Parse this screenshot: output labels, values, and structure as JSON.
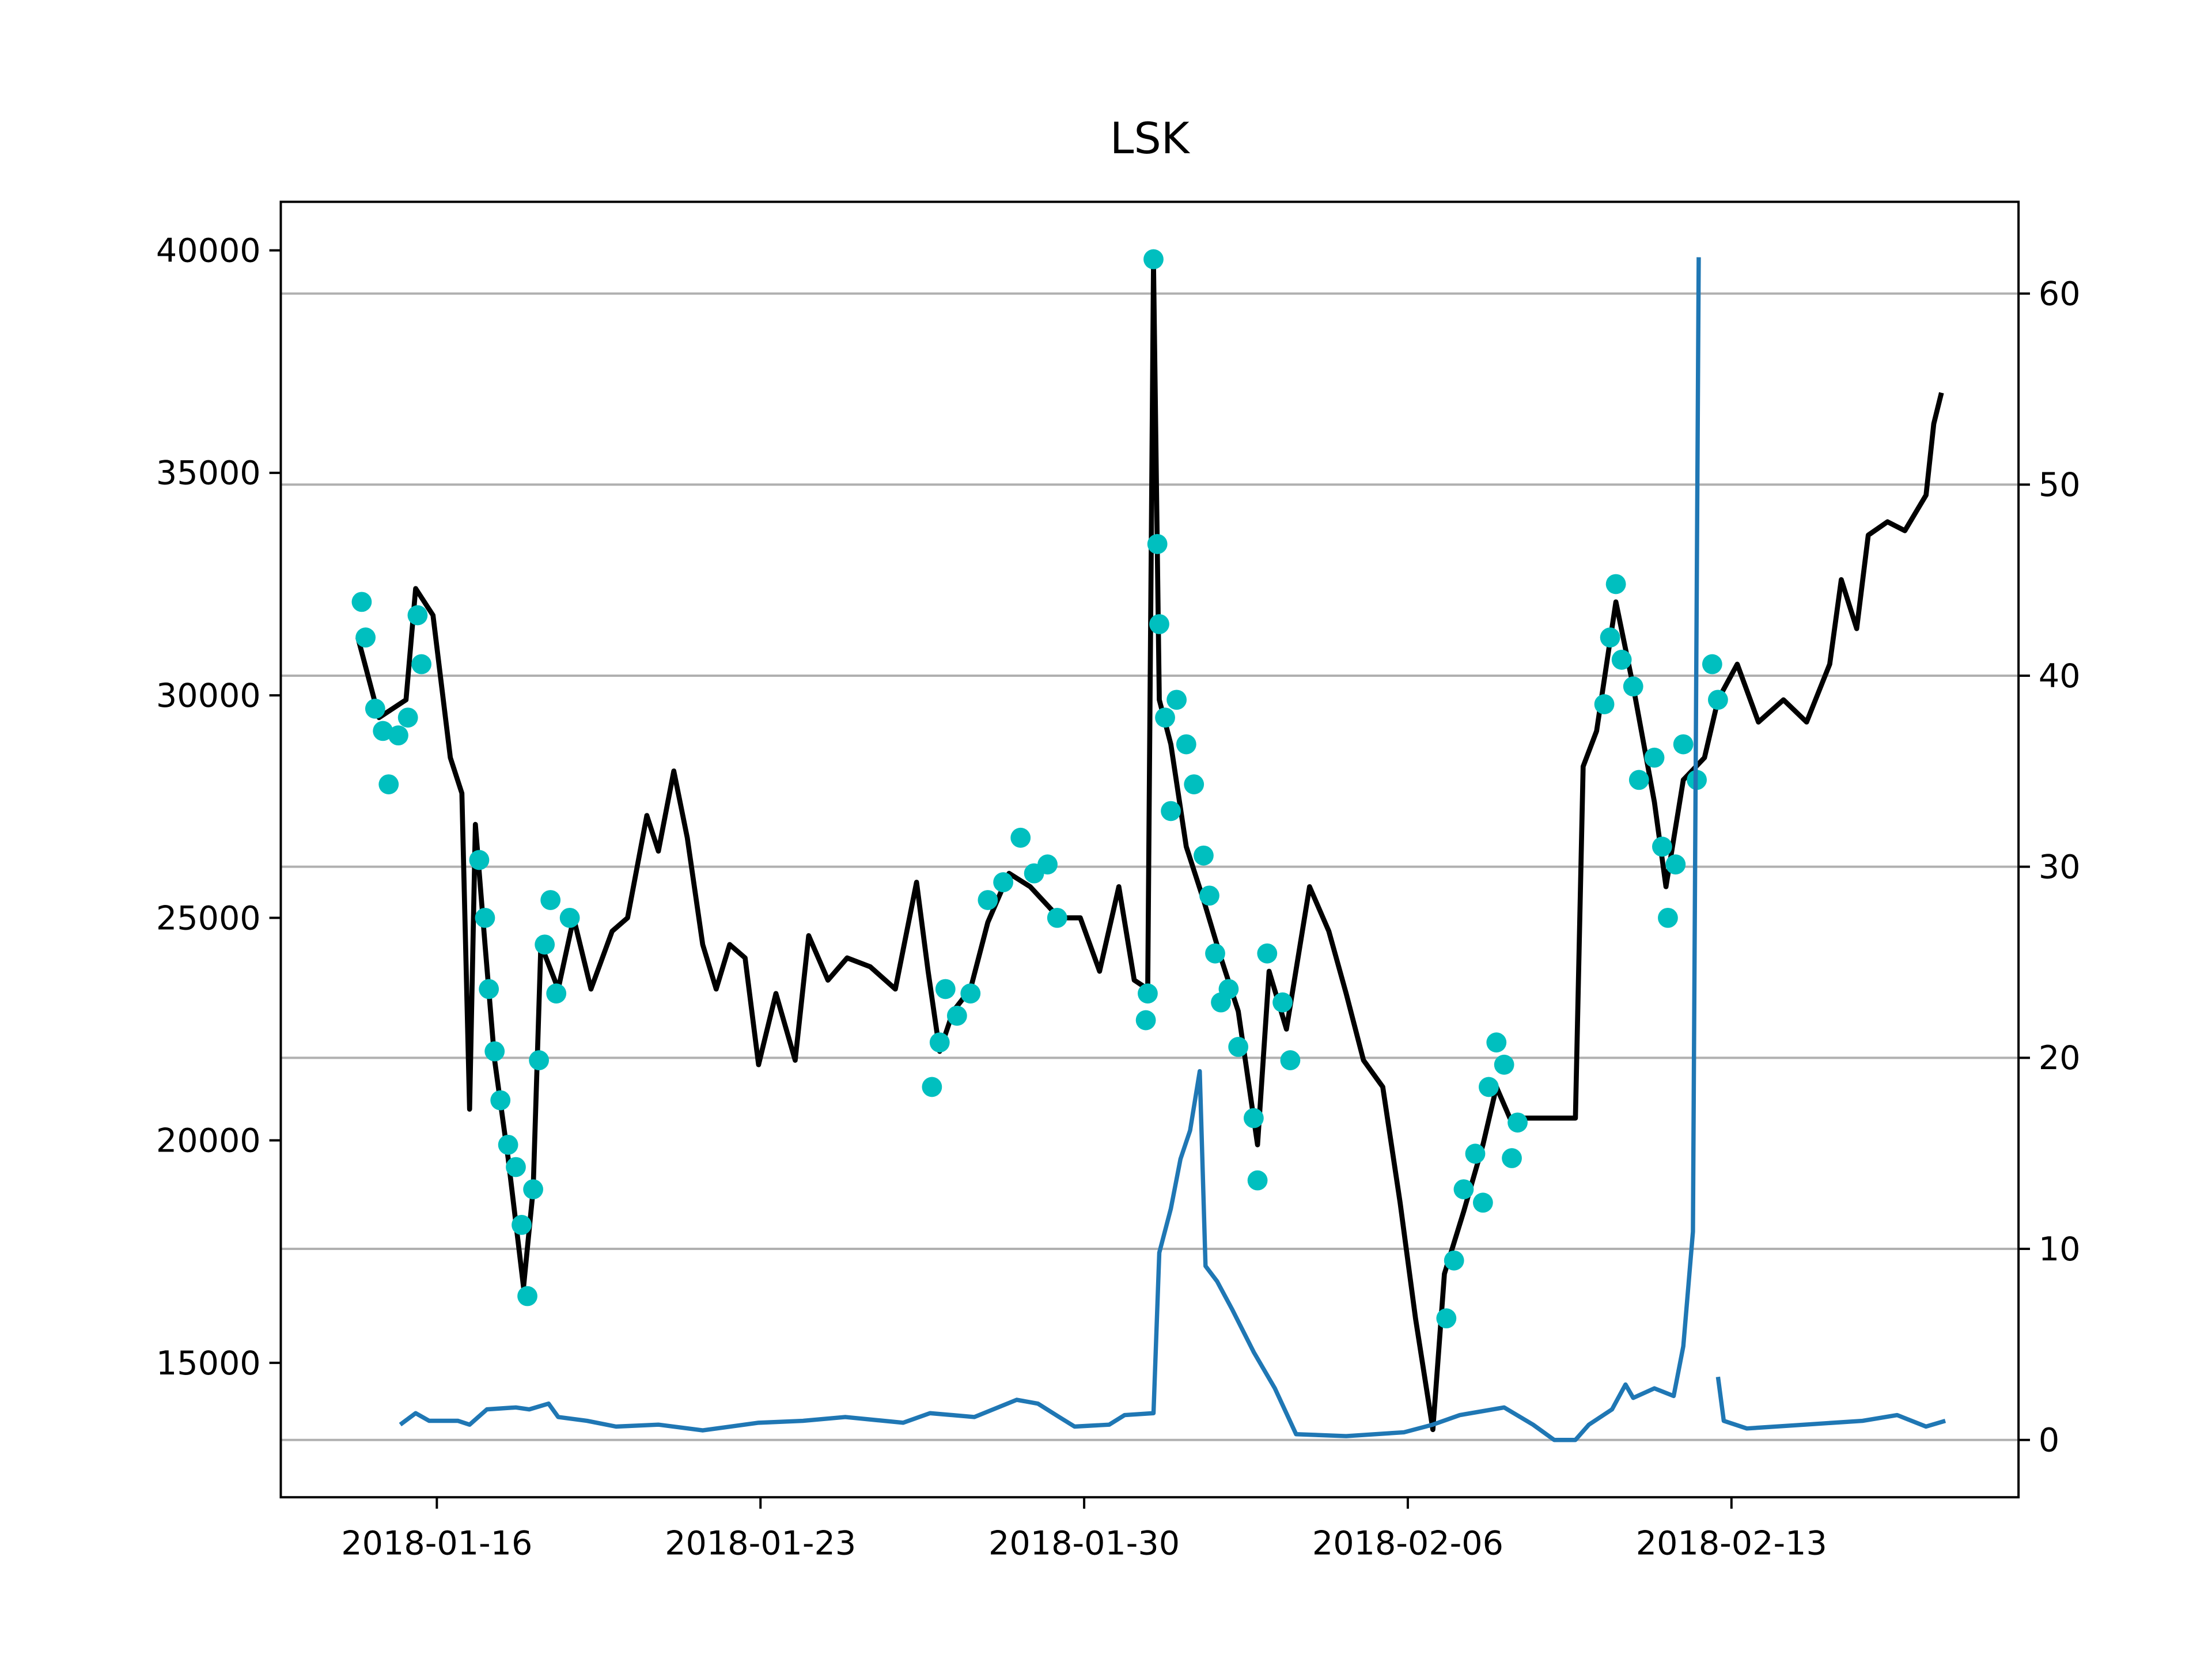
{
  "chart_data": {
    "type": "line",
    "title": "LSK",
    "xlim": [
      "2018-01-12 15:00",
      "2018-02-19 05:00"
    ],
    "xticks": [
      "2018-01-16",
      "2018-01-23",
      "2018-01-30",
      "2018-02-06",
      "2018-02-13"
    ],
    "ylim": [
      11980,
      41090
    ],
    "yticks": [
      15000,
      20000,
      25000,
      30000,
      35000,
      40000
    ],
    "y2lim": [
      -3.0,
      64.8
    ],
    "y2ticks": [
      0,
      10,
      20,
      30,
      40,
      50,
      60
    ],
    "grid": "y2",
    "series": [
      {
        "type": "line",
        "color": "#000000",
        "x": [
          "2018-01-14 07:00",
          "2018-01-14 18:00",
          "2018-01-15 08:00",
          "2018-01-15 13:00",
          "2018-01-15 22:00",
          "2018-01-16 07:00",
          "2018-01-16 13:00",
          "2018-01-16 17:00",
          "2018-01-16 20:00",
          "2018-01-17 01:00",
          "2018-01-17 06:00",
          "2018-01-17 13:00",
          "2018-01-17 21:00",
          "2018-01-18 02:00",
          "2018-01-18 06:00",
          "2018-01-18 15:00",
          "2018-01-18 23:00",
          "2018-01-19 08:00",
          "2018-01-19 19:00",
          "2018-01-20 03:00",
          "2018-01-20 13:00",
          "2018-01-20 19:00",
          "2018-01-21 03:00",
          "2018-01-21 10:00",
          "2018-01-21 18:00",
          "2018-01-22 01:00",
          "2018-01-22 08:00",
          "2018-01-22 16:00",
          "2018-01-22 23:00",
          "2018-01-23 08:00",
          "2018-01-23 18:00",
          "2018-01-24 01:00",
          "2018-01-24 11:00",
          "2018-01-24 21:00",
          "2018-01-25 09:00",
          "2018-01-25 22:00",
          "2018-01-26 09:00",
          "2018-01-26 15:00",
          "2018-01-26 21:00",
          "2018-01-27 04:00",
          "2018-01-27 13:00",
          "2018-01-27 22:00",
          "2018-01-28 09:00",
          "2018-01-28 20:00",
          "2018-01-29 11:00",
          "2018-01-29 22:00",
          "2018-01-30 08:00",
          "2018-01-30 18:00",
          "2018-01-31 02:00",
          "2018-01-31 09:00",
          "2018-01-31 12:00",
          "2018-01-31 15:00",
          "2018-01-31 21:00",
          "2018-02-01 05:00",
          "2018-02-01 14:00",
          "2018-02-01 23:00",
          "2018-02-02 08:00",
          "2018-02-02 18:00",
          "2018-02-03 00:00",
          "2018-02-03 09:00",
          "2018-02-03 21:00",
          "2018-02-04 07:00",
          "2018-02-04 16:00",
          "2018-02-05 01:00",
          "2018-02-05 11:00",
          "2018-02-05 20:00",
          "2018-02-06 04:00",
          "2018-02-06 13:00",
          "2018-02-06 19:00",
          "2018-02-07 05:00",
          "2018-02-07 15:00",
          "2018-02-07 22:00",
          "2018-02-08 05:00",
          "2018-02-09 15:00",
          "2018-02-09 19:00",
          "2018-02-10 02:00",
          "2018-02-10 12:00",
          "2018-02-10 21:00",
          "2018-02-11 08:00",
          "2018-02-11 14:00",
          "2018-02-11 23:00",
          "2018-02-12 10:00",
          "2018-02-12 17:00",
          "2018-02-13 03:00",
          "2018-02-13 14:00",
          "2018-02-14 03:00",
          "2018-02-14 15:00",
          "2018-02-15 03:00",
          "2018-02-15 09:00",
          "2018-02-15 17:00",
          "2018-02-15 23:00",
          "2018-02-16 09:00",
          "2018-02-16 18:00",
          "2018-02-17 05:00",
          "2018-02-17 09:00",
          "2018-02-17 13:00"
        ],
        "values": [
          31300,
          29500,
          29900,
          32400,
          31800,
          28600,
          27800,
          20700,
          27100,
          24400,
          21800,
          19600,
          16700,
          18900,
          24400,
          23400,
          25000,
          23400,
          24700,
          25000,
          27300,
          26500,
          28300,
          26800,
          24400,
          23400,
          24400,
          24100,
          21700,
          23300,
          21800,
          24600,
          23600,
          24100,
          23900,
          23400,
          25800,
          23800,
          22000,
          22900,
          23400,
          24900,
          26000,
          25700,
          25000,
          25000,
          23800,
          25700,
          23600,
          23400,
          39700,
          29900,
          28900,
          26600,
          25400,
          24100,
          22900,
          19900,
          23800,
          22500,
          25700,
          24700,
          23300,
          21800,
          21200,
          18600,
          16000,
          13500,
          17000,
          18400,
          19900,
          21200,
          20500,
          20500,
          28400,
          29200,
          32100,
          30200,
          27600,
          25700,
          28100,
          28600,
          29900,
          30700,
          29400,
          29900,
          29400,
          30700,
          32600,
          31500,
          33600,
          33900,
          33700,
          34500,
          36100,
          36800
        ]
      },
      {
        "type": "scatter",
        "color": "#00bfbf",
        "x": [
          "2018-01-14 09:00",
          "2018-01-14 11:00",
          "2018-01-14 16:00",
          "2018-01-14 20:00",
          "2018-01-14 23:00",
          "2018-01-15 04:00",
          "2018-01-15 09:00",
          "2018-01-15 14:00",
          "2018-01-15 16:00",
          "2018-01-16 22:00",
          "2018-01-17 01:00",
          "2018-01-17 03:00",
          "2018-01-17 06:00",
          "2018-01-17 09:00",
          "2018-01-17 13:00",
          "2018-01-17 17:00",
          "2018-01-17 20:00",
          "2018-01-17 23:00",
          "2018-01-18 02:00",
          "2018-01-18 05:00",
          "2018-01-18 08:00",
          "2018-01-18 11:00",
          "2018-01-18 14:00",
          "2018-01-18 21:00",
          "2018-01-26 17:00",
          "2018-01-26 21:00",
          "2018-01-27 00:00",
          "2018-01-27 06:00",
          "2018-01-27 13:00",
          "2018-01-27 22:00",
          "2018-01-28 06:00",
          "2018-01-28 15:00",
          "2018-01-28 22:00",
          "2018-01-29 05:00",
          "2018-01-29 10:00",
          "2018-01-31 08:00",
          "2018-01-31 09:00",
          "2018-01-31 12:00",
          "2018-01-31 14:00",
          "2018-01-31 15:00",
          "2018-01-31 18:00",
          "2018-01-31 21:00",
          "2018-02-01 00:00",
          "2018-02-01 05:00",
          "2018-02-01 09:00",
          "2018-02-01 14:00",
          "2018-02-01 17:00",
          "2018-02-01 20:00",
          "2018-02-01 23:00",
          "2018-02-02 03:00",
          "2018-02-02 08:00",
          "2018-02-02 16:00",
          "2018-02-02 18:00",
          "2018-02-02 23:00",
          "2018-02-03 07:00",
          "2018-02-03 11:00",
          "2018-02-06 20:00",
          "2018-02-07 00:00",
          "2018-02-07 05:00",
          "2018-02-07 11:00",
          "2018-02-07 15:00",
          "2018-02-07 18:00",
          "2018-02-07 22:00",
          "2018-02-08 02:00",
          "2018-02-08 06:00",
          "2018-02-08 09:00",
          "2018-02-10 06:00",
          "2018-02-10 09:00",
          "2018-02-10 12:00",
          "2018-02-10 15:00",
          "2018-02-10 21:00",
          "2018-02-11 00:00",
          "2018-02-11 08:00",
          "2018-02-11 12:00",
          "2018-02-11 15:00",
          "2018-02-11 19:00",
          "2018-02-11 23:00",
          "2018-02-12 06:00",
          "2018-02-12 14:00",
          "2018-02-12 17:00"
        ],
        "values": [
          32100,
          31300,
          29700,
          29200,
          28000,
          29100,
          29500,
          31800,
          30700,
          26300,
          25000,
          23400,
          22000,
          20900,
          19900,
          19400,
          18100,
          16500,
          18900,
          21800,
          24400,
          25400,
          23300,
          25000,
          21200,
          22200,
          23400,
          22800,
          23300,
          25400,
          25800,
          26800,
          26000,
          26200,
          25000,
          22700,
          23300,
          39800,
          33400,
          31600,
          29500,
          27400,
          29900,
          28900,
          28000,
          26400,
          25500,
          24200,
          23100,
          23400,
          22100,
          20500,
          19100,
          24200,
          23100,
          21800,
          16000,
          17300,
          18900,
          19700,
          18600,
          21200,
          22200,
          21700,
          19600,
          20400,
          29800,
          31300,
          32500,
          30800,
          30200,
          28100,
          28600,
          26600,
          25000,
          26200,
          28900,
          28100,
          30700,
          29900
        ]
      },
      {
        "type": "line",
        "axis": "y2",
        "color": "#1f77b4",
        "x": [
          "2018-01-15 05:00",
          "2018-01-15 13:00",
          "2018-01-15 20:00",
          "2018-01-16 11:00",
          "2018-01-16 17:00",
          "2018-01-17 02:00",
          "2018-01-17 17:00",
          "2018-01-18 00:00",
          "2018-01-18 10:00",
          "2018-01-18 15:00",
          "2018-01-19 06:00",
          "2018-01-19 21:00",
          "2018-01-20 19:00",
          "2018-01-21 18:00",
          "2018-01-22 23:00",
          "2018-01-23 22:00",
          "2018-01-24 20:00",
          "2018-01-26 02:00",
          "2018-01-26 16:00",
          "2018-01-27 15:00",
          "2018-01-28 13:00",
          "2018-01-29 00:00",
          "2018-01-29 11:00",
          "2018-01-29 19:00",
          "2018-01-30 13:00",
          "2018-01-30 21:00",
          "2018-01-31 12:00",
          "2018-01-31 15:00",
          "2018-01-31 21:00",
          "2018-02-01 02:00",
          "2018-02-01 07:00",
          "2018-02-01 12:00",
          "2018-02-01 15:00",
          "2018-02-01 21:00",
          "2018-02-02 05:00",
          "2018-02-02 16:00",
          "2018-02-03 03:00",
          "2018-02-03 14:00",
          "2018-02-04 16:00",
          "2018-02-05 22:00",
          "2018-02-06 13:00",
          "2018-02-07 03:00",
          "2018-02-08 02:00",
          "2018-02-08 17:00",
          "2018-02-09 04:00",
          "2018-02-09 15:00",
          "2018-02-09 22:00",
          "2018-02-10 10:00",
          "2018-02-10 17:00",
          "2018-02-10 21:00",
          "2018-02-11 08:00",
          "2018-02-11 18:00",
          "2018-02-11 23:00",
          "2018-02-12 04:00",
          "2018-02-12 07:00",
          "2018-02-12 12:00",
          "2018-02-12 17:00",
          "2018-02-12 20:00",
          "2018-02-13 08:00",
          "2018-02-14 14:00",
          "2018-02-15 20:00",
          "2018-02-16 14:00",
          "2018-02-17 05:00",
          "2018-02-17 15:00"
        ],
        "values": [
          0.8,
          1.4,
          1.0,
          1.0,
          0.8,
          1.6,
          1.7,
          1.6,
          1.9,
          1.2,
          1.0,
          0.7,
          0.8,
          0.5,
          0.9,
          1.0,
          1.2,
          0.9,
          1.4,
          1.2,
          2.1,
          1.9,
          1.2,
          0.7,
          0.8,
          1.3,
          1.4,
          9.8,
          12.1,
          14.7,
          16.2,
          19.3,
          9.1,
          8.3,
          6.8,
          4.6,
          2.7,
          0.3,
          0.2,
          0.4,
          0.8,
          1.3,
          1.7,
          0.8,
          0.0,
          0.0,
          0.8,
          1.6,
          2.9,
          2.2,
          2.7,
          2.3,
          4.9,
          10.9,
          61.9,
          null,
          3.3,
          1.0,
          0.6,
          0.8,
          1.0,
          1.3,
          0.7,
          1.0
        ]
      }
    ]
  }
}
